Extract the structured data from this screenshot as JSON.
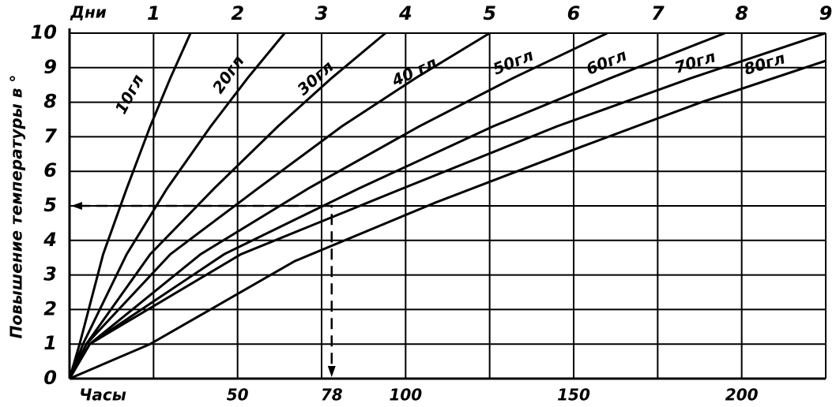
{
  "chart_data": {
    "type": "line",
    "ylabel": "Повышение температуры в °",
    "xlabel": "Часы",
    "x2label": "Дни",
    "xlim": [
      0,
      225
    ],
    "xticks": [
      50,
      78,
      100,
      150,
      200
    ],
    "x2lim": [
      0,
      9
    ],
    "x2ticks": [
      1,
      2,
      3,
      4,
      5,
      6,
      7,
      8,
      9
    ],
    "ylim": [
      0,
      10
    ],
    "yticks": [
      0,
      1,
      2,
      3,
      4,
      5,
      6,
      7,
      8,
      9,
      10
    ],
    "grid": true,
    "color": "#000000",
    "annotation": {
      "x": 78,
      "y": 5
    },
    "series": [
      {
        "name": "10гл",
        "x": [
          0,
          3,
          10,
          17,
          24,
          30,
          36
        ],
        "values": [
          0,
          1,
          3.6,
          5.5,
          7.3,
          8.7,
          10
        ]
      },
      {
        "name": "20гл",
        "x": [
          0,
          4,
          17,
          29,
          42,
          53,
          64
        ],
        "values": [
          0,
          1,
          3.6,
          5.5,
          7.3,
          8.7,
          10
        ]
      },
      {
        "name": "30гл",
        "x": [
          0,
          5,
          24,
          43,
          62,
          78,
          94
        ],
        "values": [
          0,
          1,
          3.6,
          5.5,
          7.3,
          8.7,
          10
        ]
      },
      {
        "name": "40 гл",
        "x": [
          0,
          5,
          30,
          56,
          81,
          103,
          125
        ],
        "values": [
          0,
          1,
          3.6,
          5.5,
          7.3,
          8.7,
          10
        ]
      },
      {
        "name": "50гл",
        "x": [
          0,
          6,
          39,
          71,
          104,
          132,
          160
        ],
        "values": [
          0,
          1,
          3.6,
          5.5,
          7.3,
          8.7,
          10
        ]
      },
      {
        "name": "60гл",
        "x": [
          0,
          6,
          46,
          86,
          126,
          161,
          195
        ],
        "values": [
          0,
          1,
          3.6,
          5.5,
          7.3,
          8.7,
          10
        ]
      },
      {
        "name": "70гл",
        "x": [
          0,
          6,
          51,
          99,
          145,
          185,
          225
        ],
        "values": [
          0,
          1,
          3.6,
          5.5,
          7.3,
          8.7,
          10
        ]
      },
      {
        "name": "80гл",
        "x": [
          0,
          24,
          67,
          109,
          152,
          188,
          225
        ],
        "values": [
          0,
          1,
          3.4,
          5.1,
          6.7,
          8.0,
          9.2
        ]
      }
    ]
  }
}
